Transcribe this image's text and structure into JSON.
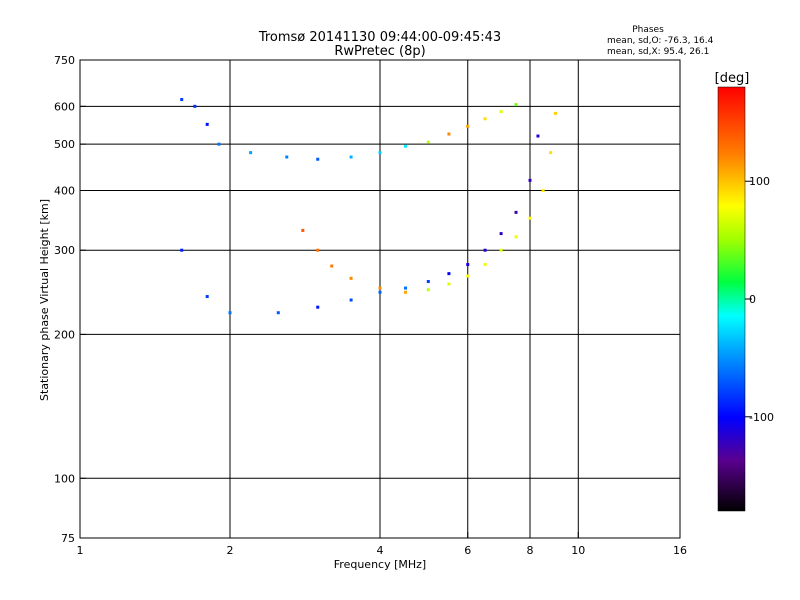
{
  "chart_data": {
    "type": "scatter",
    "title": "Tromsø 20141130 09:44:00-09:45:43",
    "subtitle": "RwPretec (8p)",
    "phases_label": "Phases",
    "phases_lines": [
      "mean, sd,O: -76.3, 16.4",
      "mean, sd,X: 95.4, 26.1"
    ],
    "xlabel": "Frequency [MHz]",
    "ylabel": "Stationary phase Virtual Height [km]",
    "x_scale": "log",
    "y_scale": "log",
    "xlim": [
      1,
      16
    ],
    "ylim": [
      75,
      750
    ],
    "x_ticks": [
      1,
      2,
      4,
      6,
      8,
      10,
      16
    ],
    "x_tick_labels": [
      "1",
      "2",
      "4",
      "6",
      "8",
      "10",
      "16"
    ],
    "y_ticks": [
      75,
      100,
      200,
      300,
      400,
      500,
      600,
      750
    ],
    "y_tick_labels": [
      "75",
      "100",
      "200",
      "300",
      "400",
      "500",
      "600",
      "750"
    ],
    "grid": true,
    "colorbar": {
      "label": "[deg]",
      "range": [
        -180,
        180
      ],
      "ticks": [
        100,
        0,
        -100
      ],
      "tick_labels": [
        "100",
        "0",
        "-100"
      ]
    },
    "series": [
      {
        "points": [
          [
            1.6,
            620,
            -80
          ],
          [
            1.7,
            600,
            -85
          ],
          [
            1.8,
            550,
            -95
          ],
          [
            1.9,
            500,
            -60
          ],
          [
            2.2,
            480,
            -45
          ],
          [
            2.6,
            470,
            -55
          ],
          [
            3.0,
            465,
            -70
          ],
          [
            3.5,
            470,
            -40
          ],
          [
            4.0,
            480,
            -30
          ],
          [
            4.5,
            495,
            -20
          ],
          [
            5.0,
            505,
            60
          ],
          [
            5.5,
            525,
            120
          ],
          [
            6.0,
            545,
            110
          ],
          [
            6.5,
            565,
            90
          ],
          [
            7.0,
            585,
            70
          ],
          [
            7.5,
            605,
            40
          ]
        ]
      },
      {
        "points": [
          [
            1.6,
            300,
            -90
          ],
          [
            1.8,
            240,
            -80
          ],
          [
            2.0,
            222,
            -60
          ],
          [
            2.5,
            222,
            -70
          ],
          [
            3.0,
            228,
            -95
          ],
          [
            3.5,
            236,
            -75
          ],
          [
            4.0,
            245,
            -65
          ],
          [
            4.5,
            250,
            -60
          ],
          [
            5.0,
            258,
            -80
          ],
          [
            5.5,
            268,
            -100
          ],
          [
            6.0,
            280,
            -110
          ],
          [
            6.5,
            300,
            -115
          ],
          [
            7.0,
            325,
            -120
          ],
          [
            7.5,
            360,
            -125
          ],
          [
            8.0,
            420,
            -120
          ],
          [
            8.3,
            520,
            -115
          ]
        ]
      },
      {
        "points": [
          [
            2.8,
            330,
            140
          ],
          [
            3.0,
            300,
            130
          ],
          [
            3.2,
            278,
            125
          ],
          [
            3.5,
            262,
            120
          ],
          [
            4.0,
            250,
            118
          ],
          [
            4.5,
            245,
            110
          ],
          [
            5.0,
            248,
            60
          ],
          [
            5.5,
            255,
            70
          ],
          [
            6.0,
            265,
            80
          ],
          [
            6.5,
            280,
            75
          ],
          [
            7.0,
            300,
            70
          ],
          [
            7.5,
            320,
            75
          ],
          [
            8.0,
            350,
            80
          ],
          [
            8.5,
            400,
            85
          ],
          [
            8.8,
            480,
            90
          ],
          [
            9.0,
            580,
            95
          ]
        ]
      }
    ]
  }
}
